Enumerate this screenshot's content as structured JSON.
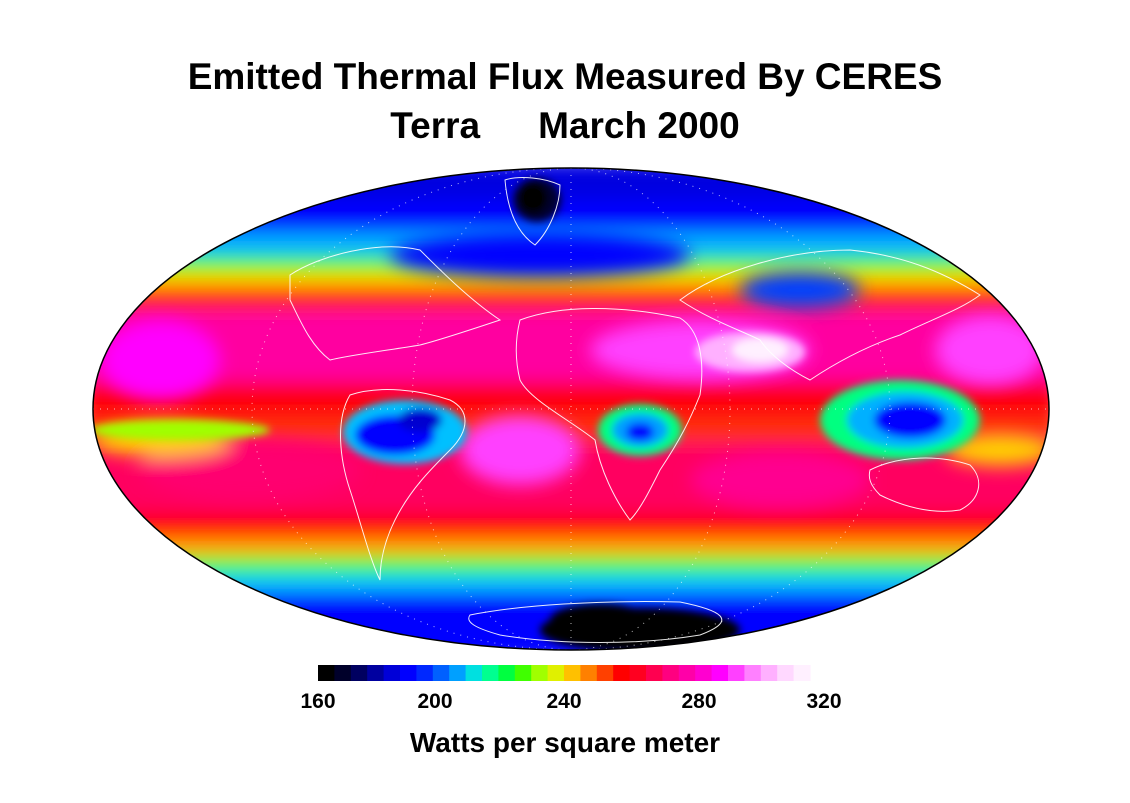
{
  "title": {
    "line1": "Emitted Thermal Flux Measured By CERES",
    "satellite": "Terra",
    "date": "March 2000"
  },
  "projection": "Mollweide",
  "colorbar": {
    "min": 160,
    "max": 320,
    "tick_labels": [
      "160",
      "200",
      "240",
      "280",
      "320"
    ],
    "units_label": "Watts per square meter",
    "colors": [
      "#000000",
      "#00002a",
      "#000060",
      "#0000a0",
      "#0000d8",
      "#0000ff",
      "#0028ff",
      "#0060ff",
      "#00a0ff",
      "#00e0e0",
      "#00ff90",
      "#00ff40",
      "#40ff00",
      "#a0ff00",
      "#e0f000",
      "#ffc000",
      "#ff8000",
      "#ff4000",
      "#ff0000",
      "#ff0020",
      "#ff0050",
      "#ff0080",
      "#ff00a8",
      "#ff00d0",
      "#ff00ff",
      "#ff40ff",
      "#ff80ff",
      "#ffb0ff",
      "#ffd8ff",
      "#fff0ff"
    ]
  },
  "colors": {
    "polar_low": "#0000ff",
    "ice_sheet": "#000000",
    "tropical_high": "#ff0000",
    "subtropical_peak": "#ff00ff",
    "desert_max": "#fff0ff",
    "coastline": "#ffffff"
  }
}
